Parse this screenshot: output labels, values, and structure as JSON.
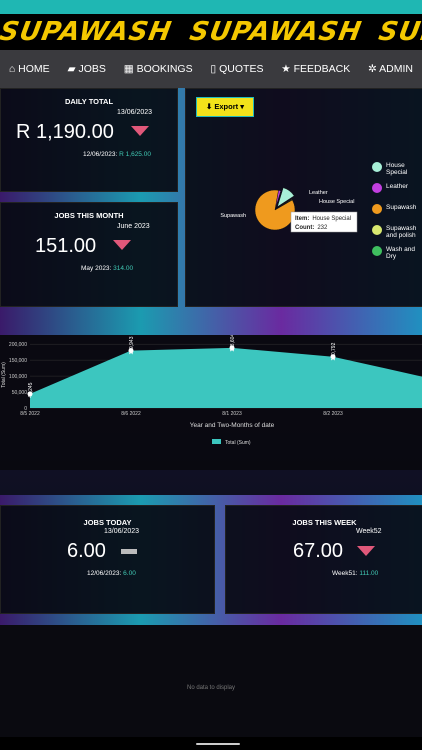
{
  "banner": {
    "text": "SUPAWASH"
  },
  "nav": [
    "HOME",
    "JOBS",
    "BOOKINGS",
    "QUOTES",
    "FEEDBACK",
    "ADMIN"
  ],
  "cards": {
    "daily_total": {
      "title": "DAILY TOTAL",
      "date": "13/06/2023",
      "value": "R 1,190.00",
      "previous_label": "12/06/2023:",
      "previous_value": "R 1,625.00"
    },
    "jobs_this_month": {
      "title": "JOBS THIS MONTH",
      "date": "June 2023",
      "value": "151.00",
      "previous_label": "May 2023:",
      "previous_value": "314.00"
    },
    "jobs_today": {
      "title": "JOBS TODAY",
      "date": "13/06/2023",
      "value": "6.00",
      "previous_label": "12/06/2023:",
      "previous_value": "6.00"
    },
    "jobs_this_week": {
      "title": "JOBS THIS WEEK",
      "date": "Week52",
      "value": "67.00",
      "previous_label": "Week51:",
      "previous_value": "111.00"
    }
  },
  "pie_chart": {
    "type": "pie",
    "export": "Export",
    "categories": [
      "Leather",
      "House Special",
      "Supawash and polish",
      "Wash and Dry",
      "Supawash"
    ],
    "values": [
      40,
      232,
      10,
      8,
      1800
    ],
    "colors": [
      "#c23fe0",
      "#a8f0d8",
      "#d8e870",
      "#3fbf5f",
      "#ef9a1e"
    ],
    "legend_order": [
      1,
      0,
      4,
      2,
      3
    ],
    "tooltip": {
      "item_label": "Item:",
      "item": "House Special",
      "count_label": "Count:",
      "count": 232
    }
  },
  "area_chart": {
    "type": "area",
    "categories": [
      "8/5 2022",
      "8/6 2022",
      "8/1 2023",
      "8/2 2023",
      null
    ],
    "values": [
      44245,
      179943,
      188604,
      160792,
      90000
    ],
    "value_labels": [
      "44,245",
      "179,943",
      "188,604",
      "160,792",
      null
    ],
    "color": "#3cc6bf",
    "ylim": [
      0,
      210000
    ],
    "yticks": [
      0,
      {
        "value": 50000,
        "label": "50,000"
      },
      {
        "value": 100000,
        "label": "100,000"
      },
      {
        "value": 150000,
        "label": "150,000"
      },
      {
        "value": 200000,
        "label": "200,000"
      }
    ],
    "x_label": "Year and Two-Months of date",
    "y_label": "Total (Sum)",
    "series_name": "Total (Sum)"
  },
  "empty_panel": {
    "text": "No data to display"
  }
}
